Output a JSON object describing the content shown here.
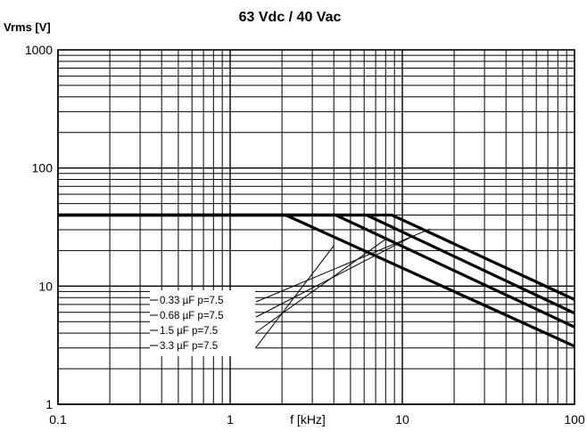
{
  "chart_data": {
    "type": "line",
    "title": "63 Vdc / 40 Vac",
    "ylabel": "Vrms [V]",
    "xlabel": "f [kHz]",
    "x_scale": "log",
    "y_scale": "log",
    "xlim": [
      0.1,
      100
    ],
    "ylim": [
      1,
      1000
    ],
    "grid": true,
    "x_ticks": [
      "0.1",
      "1",
      "10",
      "100"
    ],
    "y_ticks": [
      "1",
      "10",
      "100",
      "1000"
    ],
    "series": [
      {
        "name": "0.33 µF p=7.5",
        "x": [
          0.1,
          8.7,
          100
        ],
        "y": [
          40,
          40,
          7.7
        ]
      },
      {
        "name": "0.68 µF p=7.5",
        "x": [
          0.1,
          6.2,
          100
        ],
        "y": [
          40,
          40,
          5.9
        ]
      },
      {
        "name": "1.5  µF p=7.5",
        "x": [
          0.1,
          4.1,
          100
        ],
        "y": [
          40,
          40,
          4.5
        ]
      },
      {
        "name": "3.3  µF p=7.5",
        "x": [
          0.1,
          2.1,
          100
        ],
        "y": [
          40,
          40,
          3.1
        ]
      }
    ],
    "legend_placement": "lower-left, inside plot, with leader lines to curves"
  }
}
